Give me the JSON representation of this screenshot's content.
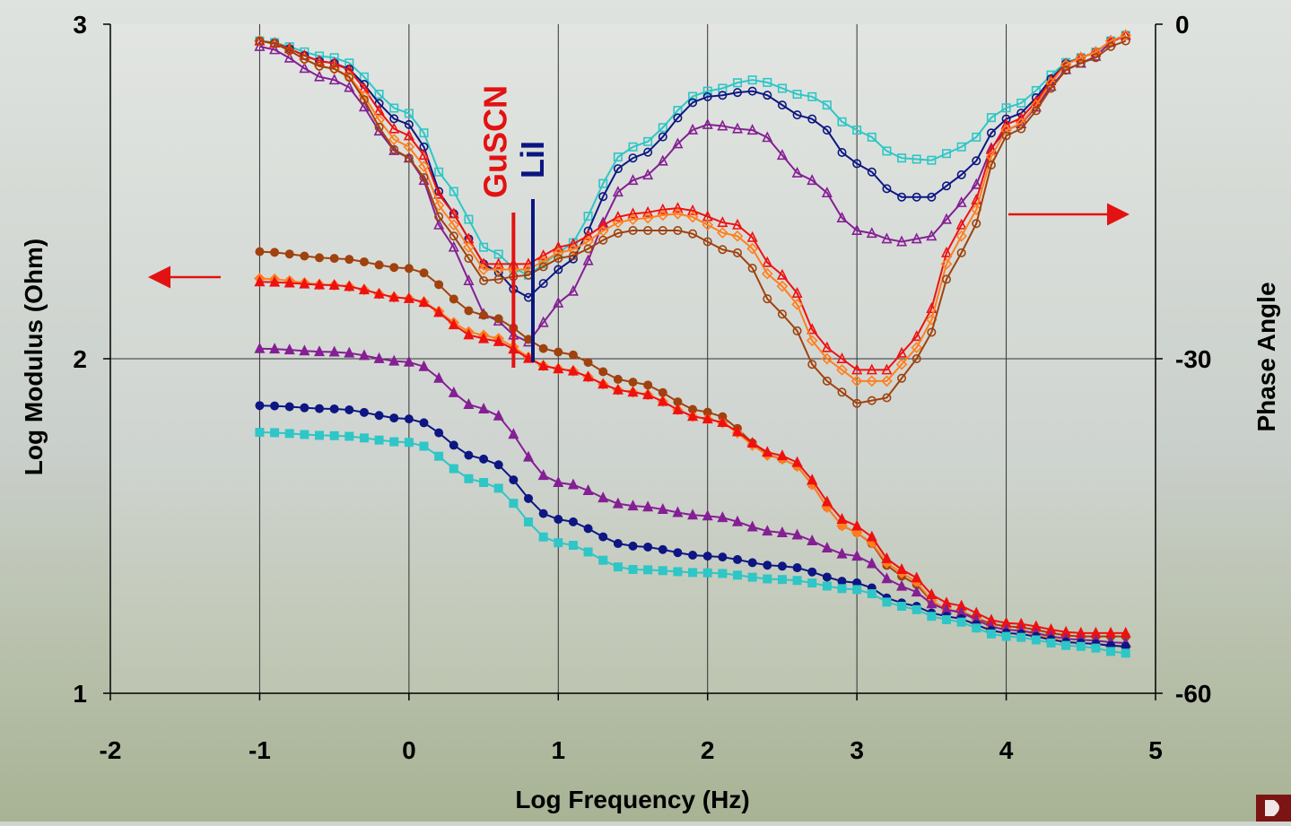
{
  "chart_data": {
    "type": "line",
    "xlabel": "Log Frequency (Hz)",
    "ylabel": "Log Modulus (Ohm)",
    "y2label": "Phase Angle",
    "xlim": [
      -2,
      5
    ],
    "ylim": [
      1,
      3
    ],
    "y2lim": [
      -60,
      0
    ],
    "x_ticks": [
      "-2",
      "-1",
      "0",
      "1",
      "2",
      "3",
      "4",
      "5"
    ],
    "y_ticks": [
      "1",
      "2",
      "3"
    ],
    "y2_ticks": [
      "-60",
      "-30",
      "0"
    ],
    "grid": true,
    "legend": "none",
    "annotations": [
      {
        "text": "GuSCN",
        "color": "#e31212",
        "x": 0.7
      },
      {
        "text": "LiI",
        "color": "#0b1580",
        "x": 0.83
      }
    ],
    "x_range": {
      "start": -1,
      "end": 4.8,
      "step": 0.1
    },
    "modulus_series": [
      {
        "color": "#a0420e",
        "marker": "circle",
        "knots": [
          [
            -1,
            2.32
          ],
          [
            -0.5,
            2.3
          ],
          [
            0,
            2.27
          ],
          [
            0.5,
            2.13
          ],
          [
            1,
            2.02
          ],
          [
            1.5,
            1.93
          ],
          [
            2,
            1.84
          ],
          [
            2.5,
            1.7
          ],
          [
            3,
            1.48
          ],
          [
            3.3,
            1.35
          ],
          [
            3.6,
            1.25
          ],
          [
            4,
            1.2
          ],
          [
            4.5,
            1.17
          ],
          [
            4.8,
            1.17
          ]
        ]
      },
      {
        "color": "#ff7f1f",
        "marker": "diamond",
        "knots": [
          [
            -1,
            2.24
          ],
          [
            -0.5,
            2.22
          ],
          [
            0,
            2.18
          ],
          [
            0.5,
            2.07
          ],
          [
            1,
            1.97
          ],
          [
            1.5,
            1.9
          ],
          [
            2,
            1.82
          ],
          [
            2.5,
            1.7
          ],
          [
            3,
            1.48
          ],
          [
            3.3,
            1.36
          ],
          [
            3.6,
            1.25
          ],
          [
            4,
            1.19
          ],
          [
            4.5,
            1.15
          ],
          [
            4.8,
            1.14
          ]
        ]
      },
      {
        "color": "#ee1111",
        "marker": "triangle",
        "knots": [
          [
            -1,
            2.23
          ],
          [
            -0.5,
            2.22
          ],
          [
            0,
            2.18
          ],
          [
            0.5,
            2.06
          ],
          [
            1,
            1.97
          ],
          [
            1.5,
            1.9
          ],
          [
            2,
            1.82
          ],
          [
            2.5,
            1.71
          ],
          [
            3,
            1.5
          ],
          [
            3.3,
            1.37
          ],
          [
            3.6,
            1.27
          ],
          [
            4,
            1.21
          ],
          [
            4.5,
            1.18
          ],
          [
            4.8,
            1.18
          ]
        ]
      },
      {
        "color": "#851f94",
        "marker": "triangle",
        "knots": [
          [
            -1,
            2.03
          ],
          [
            -0.5,
            2.02
          ],
          [
            0,
            1.99
          ],
          [
            0.5,
            1.85
          ],
          [
            1,
            1.63
          ],
          [
            1.5,
            1.56
          ],
          [
            2,
            1.53
          ],
          [
            2.5,
            1.48
          ],
          [
            3,
            1.41
          ],
          [
            3.3,
            1.32
          ],
          [
            3.6,
            1.25
          ],
          [
            4,
            1.19
          ],
          [
            4.5,
            1.16
          ],
          [
            4.8,
            1.15
          ]
        ]
      },
      {
        "color": "#0d1682",
        "marker": "circle",
        "knots": [
          [
            -1,
            1.86
          ],
          [
            -0.5,
            1.85
          ],
          [
            0,
            1.82
          ],
          [
            0.5,
            1.7
          ],
          [
            1,
            1.52
          ],
          [
            1.5,
            1.44
          ],
          [
            2,
            1.41
          ],
          [
            2.5,
            1.38
          ],
          [
            3,
            1.33
          ],
          [
            3.3,
            1.27
          ],
          [
            3.6,
            1.23
          ],
          [
            4,
            1.18
          ],
          [
            4.5,
            1.15
          ],
          [
            4.8,
            1.14
          ]
        ]
      },
      {
        "color": "#2ec6c6",
        "marker": "square",
        "knots": [
          [
            -1,
            1.78
          ],
          [
            -0.5,
            1.77
          ],
          [
            0,
            1.75
          ],
          [
            0.5,
            1.63
          ],
          [
            1,
            1.45
          ],
          [
            1.5,
            1.37
          ],
          [
            2,
            1.36
          ],
          [
            2.5,
            1.34
          ],
          [
            3,
            1.31
          ],
          [
            3.3,
            1.26
          ],
          [
            3.6,
            1.22
          ],
          [
            4,
            1.17
          ],
          [
            4.5,
            1.14
          ],
          [
            4.8,
            1.12
          ]
        ]
      }
    ],
    "phase_series": [
      {
        "color": "#2ec6c6",
        "marker": "square",
        "knots": [
          [
            -1,
            -1.5
          ],
          [
            -0.5,
            -3
          ],
          [
            0,
            -8
          ],
          [
            0.3,
            -15
          ],
          [
            0.5,
            -20
          ],
          [
            0.8,
            -22.5
          ],
          [
            1,
            -20.5
          ],
          [
            1.5,
            -11
          ],
          [
            2,
            -6
          ],
          [
            2.3,
            -5
          ],
          [
            2.7,
            -6.5
          ],
          [
            3,
            -9.5
          ],
          [
            3.3,
            -12
          ],
          [
            3.5,
            -12.2
          ],
          [
            3.7,
            -11
          ],
          [
            4,
            -7.5
          ],
          [
            4.5,
            -3
          ],
          [
            4.8,
            -1
          ]
        ]
      },
      {
        "color": "#0d1682",
        "marker": "circle",
        "knots": [
          [
            -1,
            -1.5
          ],
          [
            -0.5,
            -3.5
          ],
          [
            0,
            -9
          ],
          [
            0.3,
            -17
          ],
          [
            0.5,
            -21.5
          ],
          [
            0.8,
            -24.5
          ],
          [
            1,
            -22
          ],
          [
            1.5,
            -12
          ],
          [
            2,
            -6.5
          ],
          [
            2.3,
            -6
          ],
          [
            2.7,
            -8.5
          ],
          [
            3,
            -12.5
          ],
          [
            3.3,
            -15.5
          ],
          [
            3.5,
            -15.5
          ],
          [
            3.7,
            -13.5
          ],
          [
            4,
            -8.5
          ],
          [
            4.5,
            -3
          ],
          [
            4.8,
            -1
          ]
        ]
      },
      {
        "color": "#851f94",
        "marker": "triangle",
        "knots": [
          [
            -1,
            -2
          ],
          [
            -0.5,
            -5
          ],
          [
            0,
            -12
          ],
          [
            0.3,
            -20
          ],
          [
            0.5,
            -26
          ],
          [
            0.8,
            -28.5
          ],
          [
            1,
            -25
          ],
          [
            1.5,
            -14
          ],
          [
            2,
            -9
          ],
          [
            2.3,
            -9.5
          ],
          [
            2.7,
            -14
          ],
          [
            3,
            -18.5
          ],
          [
            3.3,
            -19.5
          ],
          [
            3.5,
            -19
          ],
          [
            3.7,
            -16
          ],
          [
            4,
            -9.5
          ],
          [
            4.5,
            -3.5
          ],
          [
            4.8,
            -1
          ]
        ]
      },
      {
        "color": "#ee1111",
        "marker": "triangle",
        "knots": [
          [
            -1,
            -1.5
          ],
          [
            -0.5,
            -3.5
          ],
          [
            0,
            -10
          ],
          [
            0.3,
            -17
          ],
          [
            0.5,
            -21.5
          ],
          [
            0.8,
            -21.5
          ],
          [
            1,
            -20
          ],
          [
            1.5,
            -17
          ],
          [
            1.8,
            -16.5
          ],
          [
            2.2,
            -18
          ],
          [
            2.5,
            -22.5
          ],
          [
            2.8,
            -29
          ],
          [
            3,
            -31
          ],
          [
            3.2,
            -31
          ],
          [
            3.4,
            -28
          ],
          [
            3.7,
            -18
          ],
          [
            4,
            -9
          ],
          [
            4.5,
            -3
          ],
          [
            4.8,
            -1
          ]
        ]
      },
      {
        "color": "#ff7f1f",
        "marker": "diamond",
        "knots": [
          [
            -1,
            -1.5
          ],
          [
            -0.5,
            -4
          ],
          [
            0,
            -11
          ],
          [
            0.3,
            -18
          ],
          [
            0.5,
            -22
          ],
          [
            0.8,
            -22
          ],
          [
            1,
            -20.5
          ],
          [
            1.5,
            -17.5
          ],
          [
            1.8,
            -17
          ],
          [
            2.2,
            -19
          ],
          [
            2.5,
            -23.5
          ],
          [
            2.8,
            -30
          ],
          [
            3,
            -32
          ],
          [
            3.2,
            -32
          ],
          [
            3.4,
            -29
          ],
          [
            3.7,
            -19
          ],
          [
            4,
            -9.5
          ],
          [
            4.5,
            -3
          ],
          [
            4.8,
            -1
          ]
        ]
      },
      {
        "color": "#a0420e",
        "marker": "circle",
        "knots": [
          [
            -1,
            -1.5
          ],
          [
            -0.5,
            -4
          ],
          [
            0,
            -12
          ],
          [
            0.3,
            -19
          ],
          [
            0.5,
            -23
          ],
          [
            0.8,
            -22.5
          ],
          [
            1,
            -21
          ],
          [
            1.5,
            -18.5
          ],
          [
            1.8,
            -18.5
          ],
          [
            2.2,
            -20.5
          ],
          [
            2.5,
            -26
          ],
          [
            2.8,
            -32
          ],
          [
            3,
            -34
          ],
          [
            3.2,
            -33.5
          ],
          [
            3.4,
            -30
          ],
          [
            3.7,
            -20.5
          ],
          [
            4,
            -10
          ],
          [
            4.5,
            -3.5
          ],
          [
            4.8,
            -1.5
          ]
        ]
      }
    ]
  }
}
